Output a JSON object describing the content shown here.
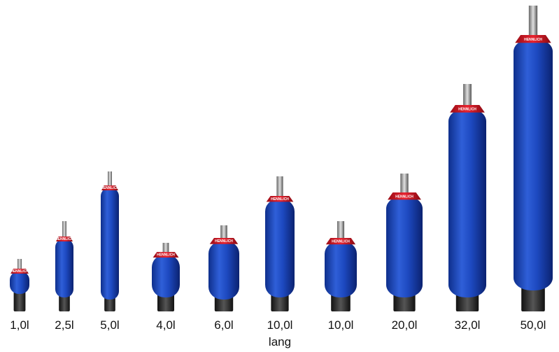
{
  "brand": "HENNLICH",
  "items": [
    {
      "label": "1,0l"
    },
    {
      "label": "2,5l"
    },
    {
      "label": "5,0l"
    },
    {
      "label": "4,0l"
    },
    {
      "label": "6,0l"
    },
    {
      "label": "10,0l",
      "note": "lang"
    },
    {
      "label": "10,0l"
    },
    {
      "label": "20,0l"
    },
    {
      "label": "32,0l"
    },
    {
      "label": "50,0l"
    }
  ]
}
